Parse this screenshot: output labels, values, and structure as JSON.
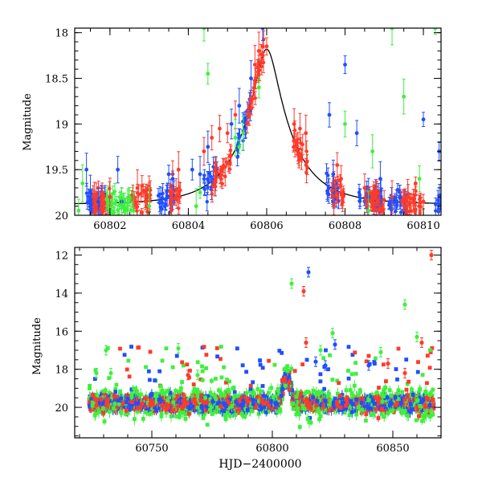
{
  "colors": {
    "blue": "#1f4fff",
    "red": "#ff3a2a",
    "green": "#3ef03e",
    "model": "#000000",
    "frame": "#000000"
  },
  "chart_data": [
    {
      "type": "scatter",
      "title": "",
      "xlabel": "",
      "ylabel": "Magnitude",
      "xlim": [
        60801.1,
        60810.45
      ],
      "ylim": [
        20.0,
        17.95
      ],
      "y_inverted": true,
      "x_ticks": [
        60802,
        60804,
        60806,
        60808,
        60810
      ],
      "y_ticks": [
        18,
        18.5,
        19,
        19.5,
        20
      ],
      "y_tick_labels": [
        "18",
        "18.5",
        "19",
        "19.5",
        "20"
      ],
      "grid": false,
      "model_curve": {
        "description": "microlensing light curve",
        "peak_x": 60806.0,
        "peak_mag": 18.18,
        "baseline_mag": 19.88,
        "tE_days": 1.25
      },
      "series": [
        {
          "color": "red",
          "x": [
            60801.6,
            60801.8,
            60802.0,
            60802.7,
            60802.9,
            60803.0,
            60803.6,
            60803.75,
            60804.4,
            60804.6,
            60804.8,
            60805.0,
            60805.2,
            60805.7,
            60805.8,
            60805.9,
            60806.0,
            60806.7,
            60806.85,
            60807.0,
            60807.7,
            60807.8,
            60807.9,
            60808.5,
            60808.8,
            60809.2,
            60809.6,
            60809.8,
            60810.0
          ],
          "y": [
            19.8,
            19.75,
            19.8,
            19.7,
            19.75,
            19.72,
            19.55,
            19.5,
            19.3,
            19.15,
            19.05,
            19.1,
            18.9,
            18.35,
            18.2,
            18.15,
            18.15,
            19.0,
            19.05,
            19.1,
            19.55,
            19.45,
            19.6,
            19.7,
            19.75,
            19.8,
            19.8,
            19.65,
            19.85
          ]
        },
        {
          "color": "blue",
          "x": [
            60801.4,
            60801.5,
            60801.7,
            60802.2,
            60802.3,
            60803.4,
            60803.5,
            60803.6,
            60804.1,
            60804.3,
            60804.5,
            60805.1,
            60805.3,
            60805.6,
            60805.9,
            60807.6,
            60807.7,
            60808.0,
            60808.3,
            60808.6,
            60808.9,
            60809.4,
            60810.0,
            60810.4
          ],
          "y": [
            19.5,
            19.75,
            19.85,
            19.5,
            19.85,
            19.9,
            19.55,
            19.6,
            19.5,
            19.55,
            19.25,
            19.0,
            18.8,
            18.5,
            17.95,
            18.9,
            19.55,
            18.35,
            19.1,
            19.8,
            19.6,
            19.8,
            18.95,
            19.3
          ]
        },
        {
          "color": "green",
          "x": [
            60801.2,
            60801.3,
            60802.3,
            60802.5,
            60802.6,
            60803.0,
            60804.2,
            60804.3,
            60804.4,
            60804.5,
            60805.2,
            60805.3,
            60805.4,
            60805.8,
            60808.0,
            60808.6,
            60808.7,
            60809.2,
            60809.5,
            60809.9,
            60810.3
          ],
          "y": [
            19.95,
            19.65,
            19.9,
            19.8,
            19.95,
            19.9,
            19.9,
            19.75,
            17.95,
            18.45,
            19.15,
            19.25,
            19.1,
            18.6,
            19.0,
            19.95,
            19.3,
            17.95,
            18.7,
            19.6,
            17.95
          ]
        }
      ]
    },
    {
      "type": "scatter",
      "title": "",
      "xlabel": "HJD−2400000",
      "ylabel": "Magnitude",
      "xlim": [
        60718,
        60870
      ],
      "ylim": [
        21.6,
        11.6
      ],
      "y_inverted": true,
      "x_ticks": [
        60750,
        60800,
        60850
      ],
      "y_ticks": [
        12,
        14,
        16,
        18,
        20
      ],
      "y_tick_labels": [
        "12",
        "14",
        "16",
        "18",
        "20"
      ],
      "grid": false,
      "baseline_mag": 19.8,
      "outliers": [
        {
          "color": "green",
          "x": [
            60727,
            60731,
            60733,
            60761,
            60769,
            60808,
            60820,
            60825,
            60845,
            60855,
            60860
          ],
          "y": [
            18.2,
            17.0,
            18.2,
            16.9,
            18.3,
            13.5,
            17.0,
            16.1,
            17.1,
            14.6,
            16.3
          ]
        },
        {
          "color": "red",
          "x": [
            60765,
            60813,
            60814,
            60848,
            60855,
            60862,
            60866
          ],
          "y": [
            18.3,
            13.9,
            16.6,
            17.7,
            18.2,
            16.6,
            12.0
          ]
        },
        {
          "color": "blue",
          "x": [
            60815,
            60818,
            60822,
            60826,
            60840
          ],
          "y": [
            12.9,
            17.6,
            17.8,
            16.7,
            17.8
          ]
        }
      ]
    }
  ]
}
